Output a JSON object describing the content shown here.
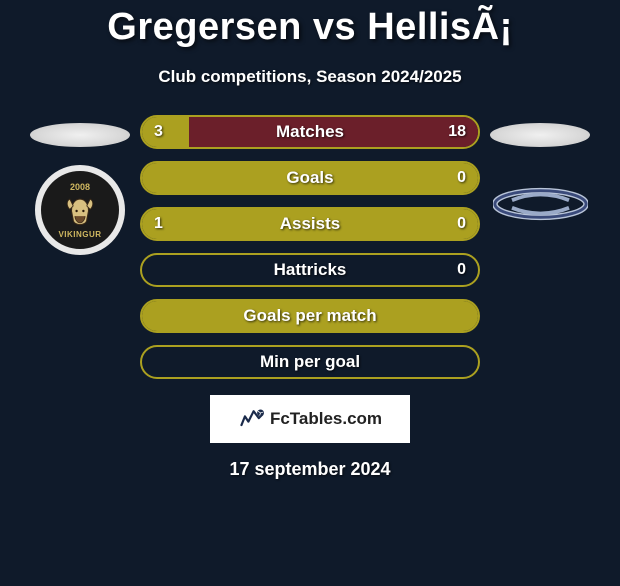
{
  "title": "Gregersen vs HellisÃ¡",
  "subtitle": "Club competitions, Season 2024/2025",
  "date": "17 september 2024",
  "left_logo": {
    "year": "2008",
    "name": "VIKINGUR"
  },
  "fctables": {
    "text": "FcTables.com"
  },
  "colors": {
    "background": "#0f1a2a",
    "accent_olive": "#aba020",
    "accent_olive_border": "#b5aa24",
    "accent_maroon": "#6b1f2a",
    "text": "#ffffff"
  },
  "bars": [
    {
      "label": "Matches",
      "left": "3",
      "right": "18",
      "left_pct": 14,
      "right_pct": 86,
      "left_color": "#aba020",
      "right_color": "#6b1f2a",
      "border_color": "#aba020",
      "show_left": true,
      "show_right": true
    },
    {
      "label": "Goals",
      "left": "",
      "right": "0",
      "left_pct": 100,
      "right_pct": 0,
      "left_color": "#aba020",
      "right_color": "#6b1f2a",
      "border_color": "#aba020",
      "show_left": false,
      "show_right": true
    },
    {
      "label": "Assists",
      "left": "1",
      "right": "0",
      "left_pct": 100,
      "right_pct": 0,
      "left_color": "#aba020",
      "right_color": "#6b1f2a",
      "border_color": "#aba020",
      "show_left": true,
      "show_right": true
    },
    {
      "label": "Hattricks",
      "left": "",
      "right": "0",
      "left_pct": 0,
      "right_pct": 0,
      "left_color": "#aba020",
      "right_color": "#6b1f2a",
      "border_color": "#aba020",
      "show_left": false,
      "show_right": true
    },
    {
      "label": "Goals per match",
      "left": "",
      "right": "",
      "left_pct": 100,
      "right_pct": 0,
      "left_color": "#aba020",
      "right_color": "#6b1f2a",
      "border_color": "#aba020",
      "show_left": false,
      "show_right": false
    },
    {
      "label": "Min per goal",
      "left": "",
      "right": "",
      "left_pct": 0,
      "right_pct": 0,
      "left_color": "#aba020",
      "right_color": "#6b1f2a",
      "border_color": "#aba020",
      "show_left": false,
      "show_right": false
    }
  ]
}
